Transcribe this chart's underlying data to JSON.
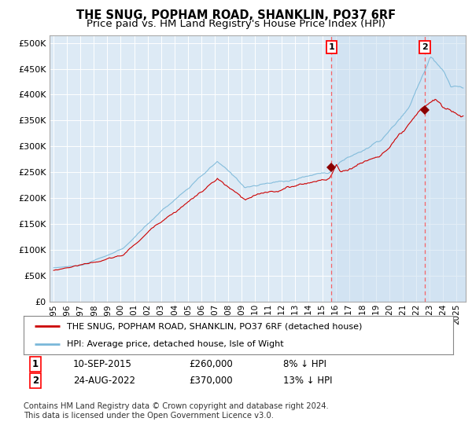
{
  "title": "THE SNUG, POPHAM ROAD, SHANKLIN, PO37 6RF",
  "subtitle": "Price paid vs. HM Land Registry's House Price Index (HPI)",
  "ytick_values": [
    0,
    50000,
    100000,
    150000,
    200000,
    250000,
    300000,
    350000,
    400000,
    450000,
    500000
  ],
  "ylim": [
    0,
    515000
  ],
  "xlim_start": 1994.7,
  "xlim_end": 2025.7,
  "hpi_color": "#7ab8d9",
  "price_color": "#cc0000",
  "background_color": "#ddeaf5",
  "grid_color": "#c8d8e8",
  "outer_grid_color": "#c0c0c0",
  "transaction1_x": 2015.69,
  "transaction1_y": 260000,
  "transaction2_x": 2022.64,
  "transaction2_y": 370000,
  "legend1_text": "THE SNUG, POPHAM ROAD, SHANKLIN, PO37 6RF (detached house)",
  "legend2_text": "HPI: Average price, detached house, Isle of Wight",
  "note1_num": "1",
  "note1_date": "10-SEP-2015",
  "note1_price": "£260,000",
  "note1_pct": "8% ↓ HPI",
  "note2_num": "2",
  "note2_date": "24-AUG-2022",
  "note2_price": "£370,000",
  "note2_pct": "13% ↓ HPI",
  "footnote": "Contains HM Land Registry data © Crown copyright and database right 2024.\nThis data is licensed under the Open Government Licence v3.0."
}
